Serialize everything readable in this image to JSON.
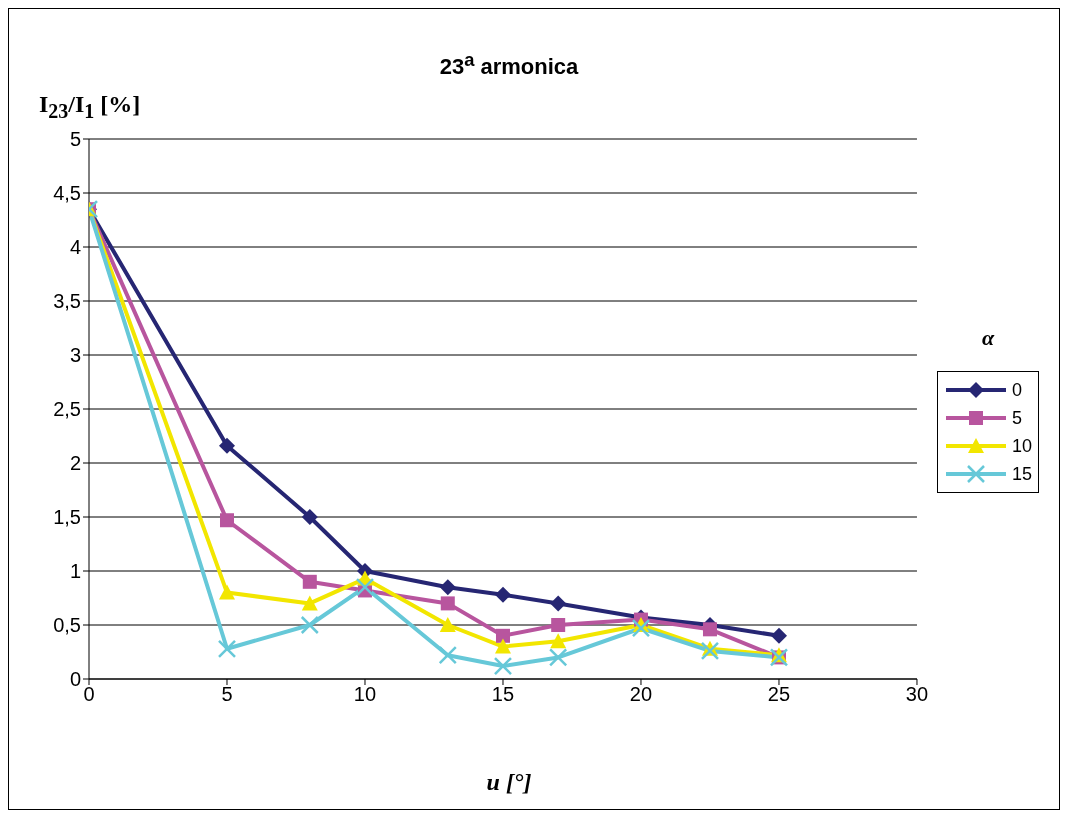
{
  "chart_data": {
    "type": "line",
    "title": "23$^{a}$ armonica",
    "xlabel": "u  [°]",
    "ylabel": "I$_{23}$/I$_{1}$ [%]",
    "legend_title": "α",
    "x": [
      0,
      5,
      8,
      10,
      13,
      15,
      17,
      20,
      22.5,
      25
    ],
    "series": [
      {
        "name": "0",
        "color": "#262673",
        "marker": "diamond",
        "values": [
          4.35,
          2.16,
          1.5,
          1.0,
          0.85,
          0.78,
          0.7,
          0.57,
          0.5,
          0.4
        ]
      },
      {
        "name": "5",
        "color": "#b8559e",
        "marker": "square",
        "values": [
          4.35,
          1.47,
          0.9,
          0.82,
          0.7,
          0.4,
          0.5,
          0.55,
          0.46,
          0.2
        ]
      },
      {
        "name": "10",
        "color": "#f2e600",
        "marker": "triangle",
        "values": [
          4.35,
          0.8,
          0.7,
          0.93,
          0.5,
          0.3,
          0.35,
          0.5,
          0.28,
          0.22
        ]
      },
      {
        "name": "15",
        "color": "#66c8d8",
        "marker": "cross",
        "values": [
          4.35,
          0.28,
          0.5,
          0.85,
          0.22,
          0.12,
          0.2,
          0.47,
          0.26,
          0.2
        ]
      }
    ],
    "xlim": [
      0,
      30
    ],
    "xticks": [
      0,
      5,
      10,
      15,
      20,
      25,
      30
    ],
    "ylim": [
      0,
      5
    ],
    "yticks": [
      0,
      {
        "value": 0.5,
        "label": "0,5"
      },
      1,
      {
        "value": 1.5,
        "label": "1,5"
      },
      2,
      {
        "value": 2.5,
        "label": "2,5"
      },
      3,
      {
        "value": 3.5,
        "label": "3,5"
      },
      4,
      {
        "value": 4.5,
        "label": "4,5"
      },
      5
    ],
    "grid": "y",
    "legend": "right",
    "line_style": "solid"
  }
}
